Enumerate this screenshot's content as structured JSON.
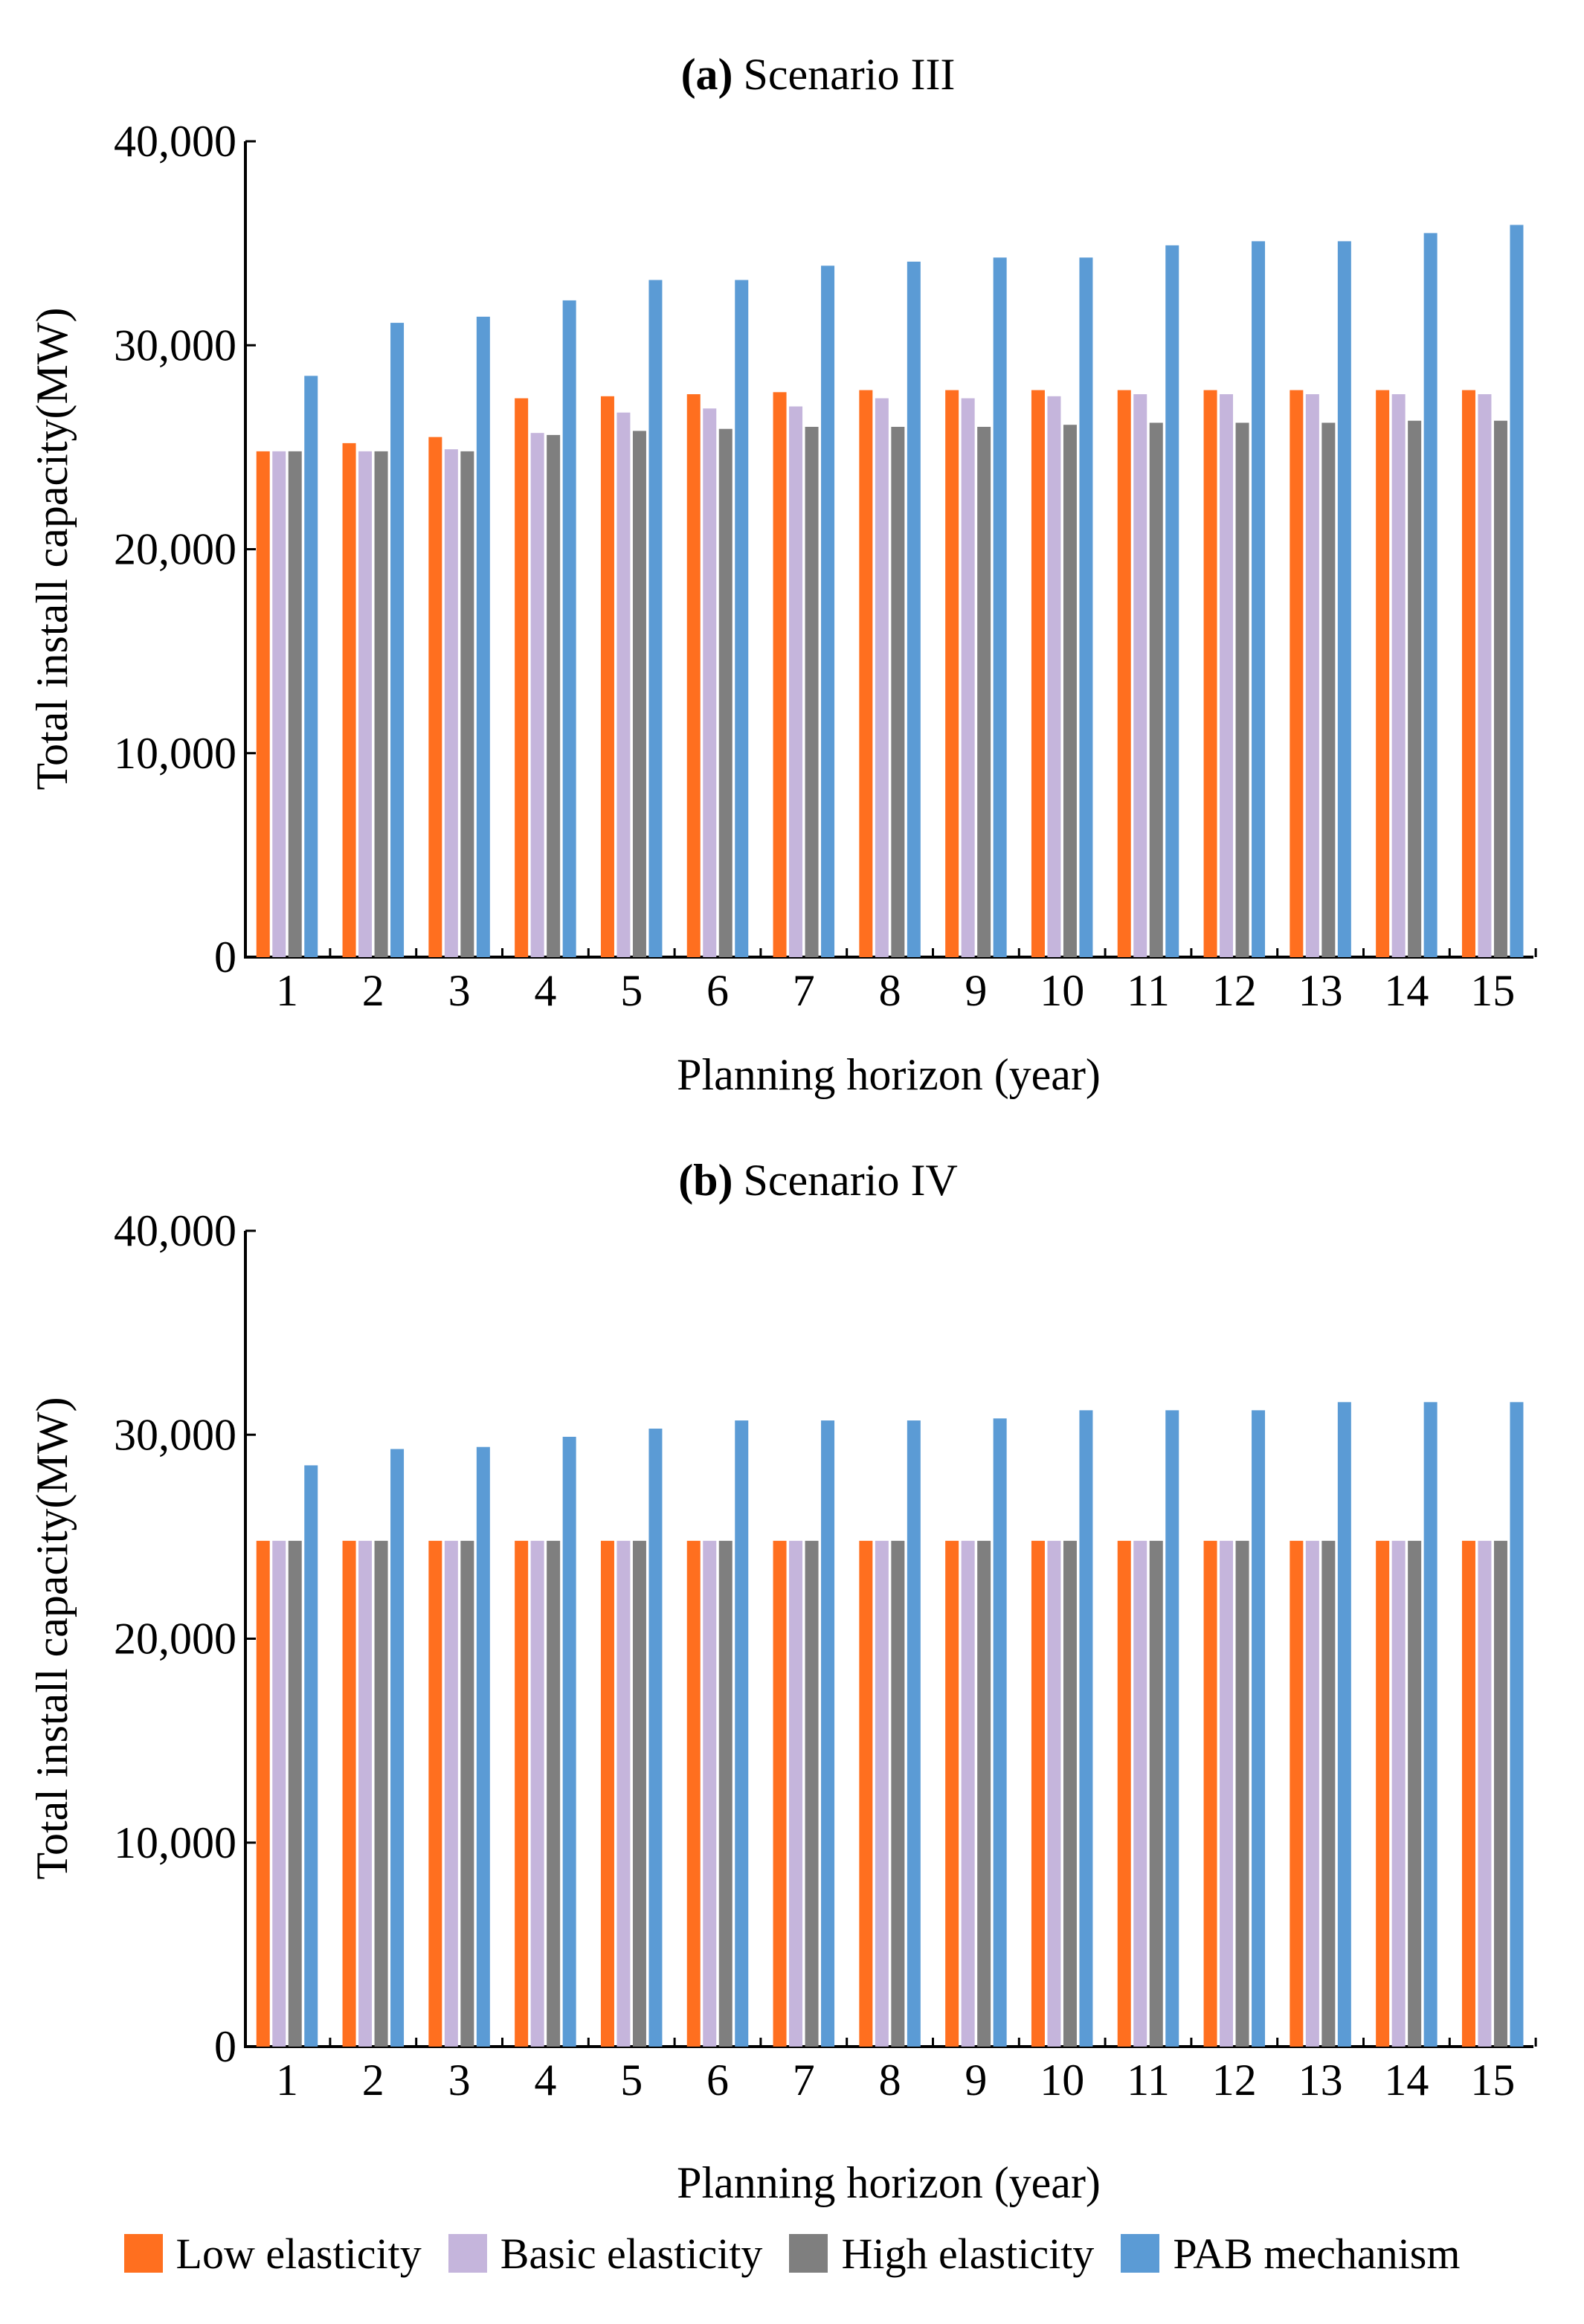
{
  "chart_data": [
    {
      "type": "bar",
      "panel_letter": "(a)",
      "panel_title": "Scenario III",
      "ylabel": "Total install capacity(MW)",
      "xlabel": "Planning horizon (year)",
      "ylim": [
        0,
        40000
      ],
      "yticks": [
        0,
        10000,
        20000,
        30000,
        40000
      ],
      "ytick_labels": [
        "0",
        "10,000",
        "20,000",
        "30,000",
        "40,000"
      ],
      "categories": [
        "1",
        "2",
        "3",
        "4",
        "5",
        "6",
        "7",
        "8",
        "9",
        "10",
        "11",
        "12",
        "13",
        "14",
        "15"
      ],
      "series": [
        {
          "name": "Low elasticity",
          "values": [
            24800,
            25200,
            25500,
            27400,
            27500,
            27600,
            27700,
            27800,
            27800,
            27800,
            27800,
            27800,
            27800,
            27800,
            27800
          ]
        },
        {
          "name": "Basic elasticity",
          "values": [
            24800,
            24800,
            24900,
            25700,
            26700,
            26900,
            27000,
            27400,
            27400,
            27500,
            27600,
            27600,
            27600,
            27600,
            27600
          ]
        },
        {
          "name": "High elasticity",
          "values": [
            24800,
            24800,
            24800,
            25600,
            25800,
            25900,
            26000,
            26000,
            26000,
            26100,
            26200,
            26200,
            26200,
            26300,
            26300
          ]
        },
        {
          "name": "PAB mechanism",
          "values": [
            28500,
            31100,
            31400,
            32200,
            33200,
            33200,
            33900,
            34100,
            34300,
            34300,
            34900,
            35100,
            35100,
            35500,
            35900
          ]
        }
      ]
    },
    {
      "type": "bar",
      "panel_letter": "(b)",
      "panel_title": "Scenario IV",
      "ylabel": "Total install capacity(MW)",
      "xlabel": "Planning horizon (year)",
      "ylim": [
        0,
        40000
      ],
      "yticks": [
        0,
        10000,
        20000,
        30000,
        40000
      ],
      "ytick_labels": [
        "0",
        "10,000",
        "20,000",
        "30,000",
        "40,000"
      ],
      "categories": [
        "1",
        "2",
        "3",
        "4",
        "5",
        "6",
        "7",
        "8",
        "9",
        "10",
        "11",
        "12",
        "13",
        "14",
        "15"
      ],
      "series": [
        {
          "name": "Low elasticity",
          "values": [
            24800,
            24800,
            24800,
            24800,
            24800,
            24800,
            24800,
            24800,
            24800,
            24800,
            24800,
            24800,
            24800,
            24800,
            24800
          ]
        },
        {
          "name": "Basic elasticity",
          "values": [
            24800,
            24800,
            24800,
            24800,
            24800,
            24800,
            24800,
            24800,
            24800,
            24800,
            24800,
            24800,
            24800,
            24800,
            24800
          ]
        },
        {
          "name": "High elasticity",
          "values": [
            24800,
            24800,
            24800,
            24800,
            24800,
            24800,
            24800,
            24800,
            24800,
            24800,
            24800,
            24800,
            24800,
            24800,
            24800
          ]
        },
        {
          "name": "PAB mechanism",
          "values": [
            28500,
            29300,
            29400,
            29900,
            30300,
            30700,
            30700,
            30700,
            30800,
            31200,
            31200,
            31200,
            31600,
            31600,
            31600
          ]
        }
      ]
    }
  ],
  "legend": [
    {
      "label": "Low elasticity",
      "color": "#ff6f1f"
    },
    {
      "label": "Basic elasticity",
      "color": "#c5b5dc"
    },
    {
      "label": "High elasticity",
      "color": "#7f7f7f"
    },
    {
      "label": "PAB mechanism",
      "color": "#5b9bd5"
    }
  ]
}
